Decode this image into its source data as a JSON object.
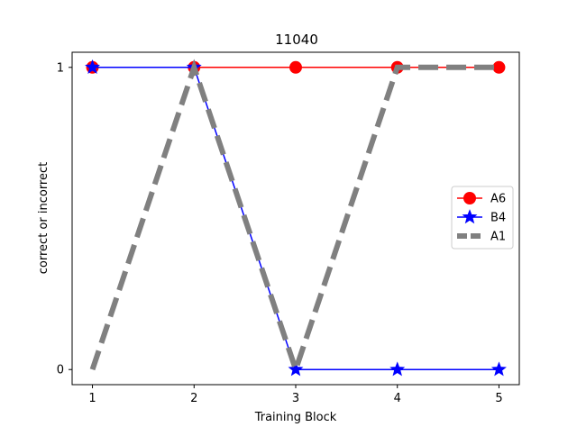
{
  "chart_data": {
    "type": "line",
    "title": "11040",
    "xlabel": "Training Block",
    "ylabel": "correct or incorrect",
    "x": [
      1,
      2,
      3,
      4,
      5
    ],
    "x_ticks": [
      "1",
      "2",
      "3",
      "4",
      "5"
    ],
    "y_ticks": [
      "0",
      "1"
    ],
    "xlim": [
      0.8,
      5.2
    ],
    "ylim": [
      -0.05,
      1.05
    ],
    "grid": false,
    "legend_position": "center-right",
    "series": [
      {
        "name": "A6",
        "values": [
          1,
          1,
          1,
          1,
          1
        ],
        "color": "#ff0000",
        "marker": "circle",
        "line_style": "solid"
      },
      {
        "name": "B4",
        "values": [
          1,
          1,
          0,
          0,
          0
        ],
        "color": "#0000ff",
        "marker": "star",
        "line_style": "solid"
      },
      {
        "name": "A1",
        "values": [
          0,
          1,
          0,
          1,
          1
        ],
        "color": "#808080",
        "marker": "none",
        "line_style": "dashed"
      }
    ]
  }
}
